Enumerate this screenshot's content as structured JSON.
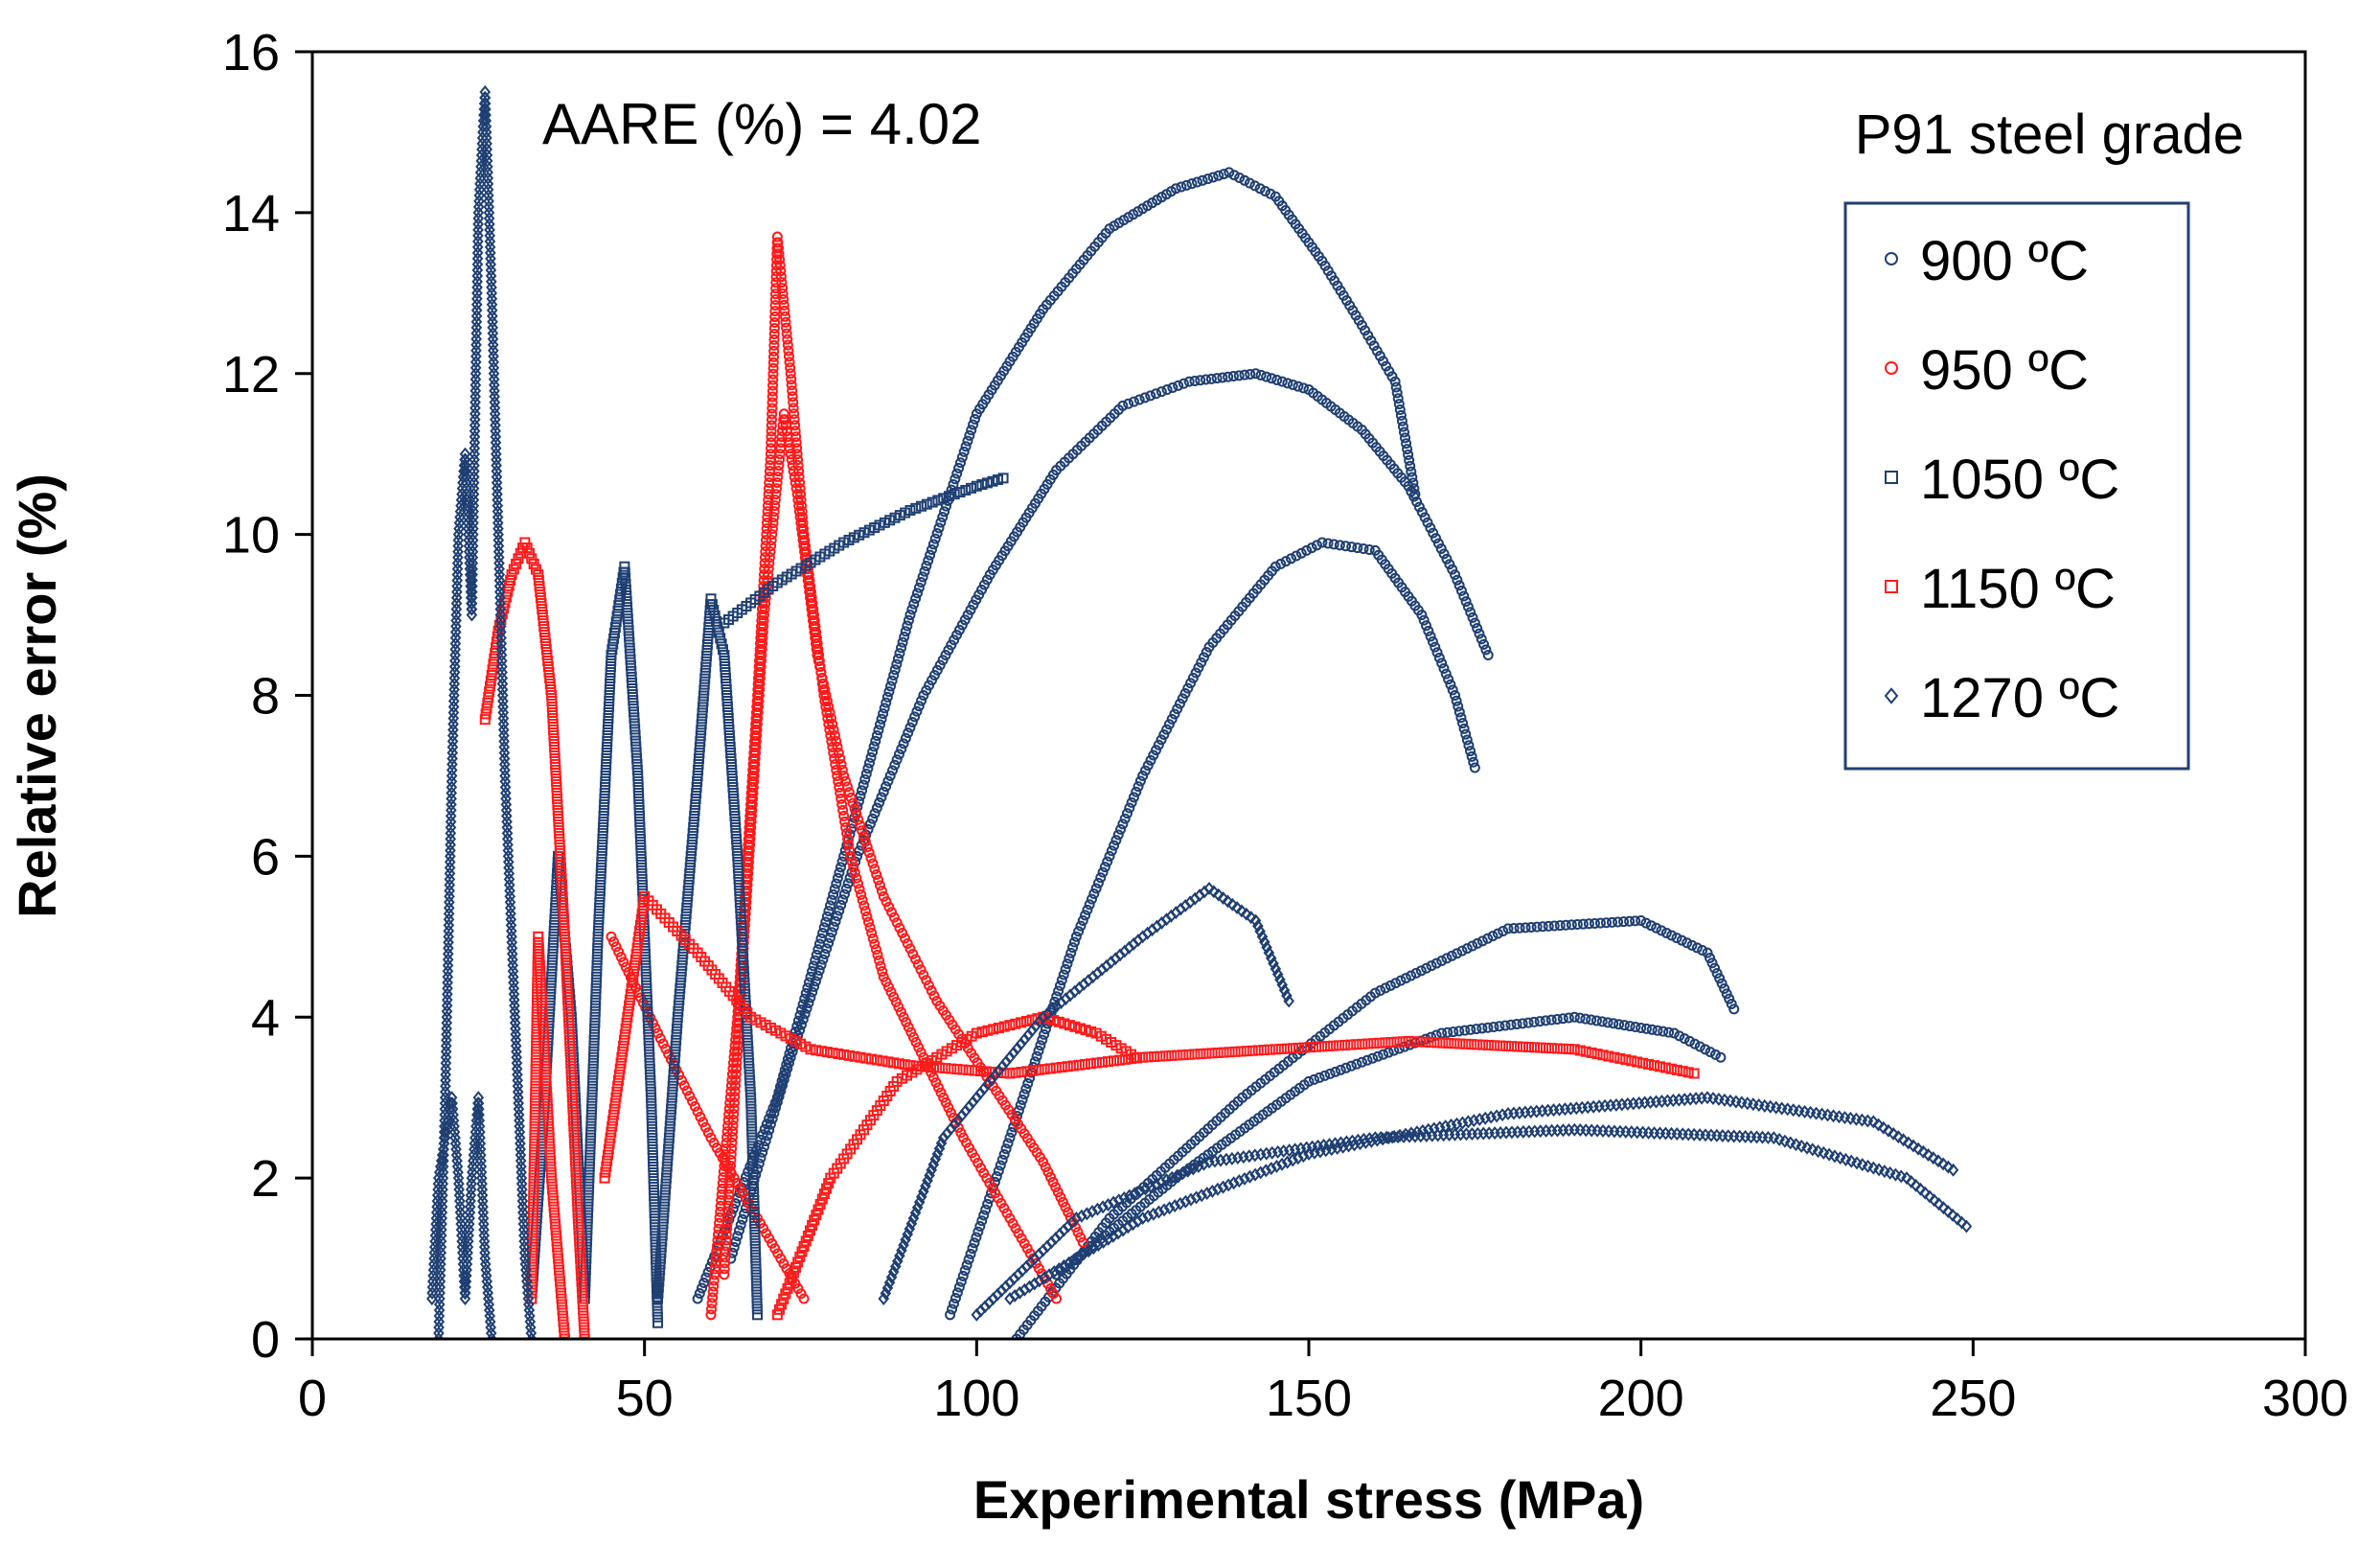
{
  "chart_data": {
    "type": "scatter",
    "xlabel": "Experimental  stress  (MPa)",
    "ylabel": "Relative error  (%)",
    "xlim": [
      0,
      300
    ],
    "ylim": [
      0,
      16
    ],
    "xticks": [
      0,
      50,
      100,
      150,
      200,
      250,
      300
    ],
    "yticks": [
      0,
      2,
      4,
      6,
      8,
      10,
      12,
      14,
      16
    ],
    "grid": false,
    "legend_position": "top-right",
    "annotations": {
      "aare": "AARE (%) = 4.02",
      "material": "P91  steel  grade"
    },
    "series": [
      {
        "name": "900 ºC",
        "marker": "circle",
        "color": "#1f3f73",
        "curves": [
          [
            [
              58,
              0.5
            ],
            [
              70,
              3
            ],
            [
              80,
              6
            ],
            [
              90,
              9
            ],
            [
              100,
              11.5
            ],
            [
              110,
              12.8
            ],
            [
              120,
              13.8
            ],
            [
              130,
              14.3
            ],
            [
              138,
              14.5
            ],
            [
              145,
              14.2
            ],
            [
              152,
              13.4
            ],
            [
              158,
              12.6
            ],
            [
              163,
              11.9
            ],
            [
              166,
              10.5
            ]
          ],
          [
            [
              63,
              1
            ],
            [
              72,
              3.5
            ],
            [
              82,
              6
            ],
            [
              92,
              8
            ],
            [
              102,
              9.5
            ],
            [
              112,
              10.8
            ],
            [
              122,
              11.6
            ],
            [
              132,
              11.9
            ],
            [
              142,
              12.0
            ],
            [
              150,
              11.8
            ],
            [
              158,
              11.3
            ],
            [
              165,
              10.6
            ],
            [
              172,
              9.5
            ],
            [
              177,
              8.5
            ]
          ],
          [
            [
              96,
              0.3
            ],
            [
              105,
              2.5
            ],
            [
              115,
              5
            ],
            [
              125,
              7
            ],
            [
              135,
              8.6
            ],
            [
              145,
              9.6
            ],
            [
              152,
              9.9
            ],
            [
              160,
              9.8
            ],
            [
              167,
              9.0
            ],
            [
              172,
              8.0
            ],
            [
              175,
              7.1
            ]
          ],
          [
            [
              106,
              0
            ],
            [
              120,
              1.5
            ],
            [
              140,
              3
            ],
            [
              160,
              4.3
            ],
            [
              180,
              5.1
            ],
            [
              200,
              5.2
            ],
            [
              210,
              4.8
            ],
            [
              214,
              4.1
            ]
          ],
          [
            [
              112,
              0.8
            ],
            [
              130,
              2
            ],
            [
              150,
              3.2
            ],
            [
              170,
              3.8
            ],
            [
              190,
              4.0
            ],
            [
              205,
              3.8
            ],
            [
              212,
              3.5
            ]
          ]
        ]
      },
      {
        "name": "950 ºC",
        "marker": "circle",
        "color": "#ff1a1a",
        "curves": [
          [
            [
              60,
              0.3
            ],
            [
              64,
              4
            ],
            [
              67,
              8
            ],
            [
              69,
              11
            ],
            [
              70,
              13.7
            ],
            [
              72,
              12
            ],
            [
              74,
              10
            ],
            [
              77,
              8
            ],
            [
              81,
              6
            ],
            [
              86,
              4.5
            ],
            [
              92,
              3.5
            ],
            [
              98,
              2.5
            ],
            [
              105,
              1.5
            ],
            [
              112,
              0.5
            ]
          ],
          [
            [
              62,
              0.8
            ],
            [
              65,
              5
            ],
            [
              68,
              9
            ],
            [
              71,
              11.5
            ],
            [
              73,
              10.5
            ],
            [
              76,
              8.5
            ],
            [
              80,
              7
            ],
            [
              86,
              5.5
            ],
            [
              94,
              4.2
            ],
            [
              102,
              3.2
            ],
            [
              110,
              2.2
            ],
            [
              116,
              1.2
            ]
          ],
          [
            [
              45,
              5
            ],
            [
              52,
              3.8
            ],
            [
              60,
              2.5
            ],
            [
              67,
              1.5
            ],
            [
              74,
              0.5
            ]
          ]
        ]
      },
      {
        "name": "1050 ºC",
        "marker": "square",
        "color": "#1f3f73",
        "curves": [
          [
            [
              33,
              0.5
            ],
            [
              35,
              3
            ],
            [
              37,
              6
            ],
            [
              39,
              4
            ],
            [
              41,
              0.5
            ],
            [
              43,
              5
            ],
            [
              45,
              8.5
            ],
            [
              47,
              9.6
            ],
            [
              49,
              7
            ],
            [
              51,
              3
            ],
            [
              52,
              0.2
            ]
          ],
          [
            [
              52,
              0.5
            ],
            [
              55,
              4
            ],
            [
              58,
              7
            ],
            [
              60,
              9.2
            ],
            [
              62,
              8.5
            ],
            [
              64,
              6
            ],
            [
              66,
              3
            ],
            [
              67,
              0.3
            ]
          ],
          [
            [
              62,
              8.9
            ],
            [
              70,
              9.4
            ],
            [
              80,
              9.9
            ],
            [
              90,
              10.3
            ],
            [
              100,
              10.6
            ],
            [
              104,
              10.7
            ]
          ]
        ]
      },
      {
        "name": "1150 ºC",
        "marker": "square",
        "color": "#ff1a1a",
        "curves": [
          [
            [
              26,
              7.7
            ],
            [
              28,
              8.8
            ],
            [
              30,
              9.5
            ],
            [
              32,
              9.9
            ],
            [
              34,
              9.5
            ],
            [
              36,
              8
            ],
            [
              38,
              5
            ],
            [
              40,
              1.5
            ],
            [
              41,
              0
            ]
          ],
          [
            [
              33,
              0.5
            ],
            [
              34,
              5
            ],
            [
              36,
              2
            ],
            [
              38,
              0
            ]
          ],
          [
            [
              44,
              2
            ],
            [
              50,
              5.5
            ],
            [
              58,
              4.8
            ],
            [
              66,
              4
            ],
            [
              75,
              3.6
            ],
            [
              90,
              3.4
            ],
            [
              105,
              3.3
            ],
            [
              125,
              3.5
            ],
            [
              145,
              3.6
            ],
            [
              165,
              3.7
            ],
            [
              190,
              3.6
            ],
            [
              208,
              3.3
            ]
          ],
          [
            [
              70,
              0.3
            ],
            [
              78,
              2
            ],
            [
              88,
              3.2
            ],
            [
              100,
              3.8
            ],
            [
              110,
              4.0
            ],
            [
              118,
              3.8
            ],
            [
              124,
              3.5
            ]
          ]
        ]
      },
      {
        "name": "1270 ºC",
        "marker": "diamond",
        "color": "#1f3f73",
        "curves": [
          [
            [
              19,
              0
            ],
            [
              20,
              3
            ],
            [
              21,
              7
            ],
            [
              22,
              10
            ],
            [
              23,
              11
            ],
            [
              24,
              9
            ],
            [
              25,
              14
            ],
            [
              26,
              15.5
            ],
            [
              27,
              13
            ],
            [
              28,
              10
            ],
            [
              29,
              7
            ],
            [
              30,
              5
            ],
            [
              31,
              3
            ],
            [
              32,
              1
            ],
            [
              33,
              0
            ]
          ],
          [
            [
              18,
              0.5
            ],
            [
              19,
              2
            ],
            [
              21,
              3
            ],
            [
              22,
              2
            ],
            [
              23,
              0.5
            ],
            [
              24,
              2
            ],
            [
              25,
              3
            ],
            [
              26,
              1
            ],
            [
              27,
              0
            ]
          ],
          [
            [
              86,
              0.5
            ],
            [
              95,
              2.5
            ],
            [
              110,
              4
            ],
            [
              125,
              5
            ],
            [
              135,
              5.6
            ],
            [
              142,
              5.2
            ],
            [
              147,
              4.2
            ]
          ],
          [
            [
              100,
              0.3
            ],
            [
              115,
              1.5
            ],
            [
              135,
              2.2
            ],
            [
              160,
              2.5
            ],
            [
              190,
              2.6
            ],
            [
              220,
              2.5
            ],
            [
              240,
              2.0
            ],
            [
              249,
              1.4
            ]
          ],
          [
            [
              105,
              0.5
            ],
            [
              125,
              1.5
            ],
            [
              150,
              2.3
            ],
            [
              180,
              2.8
            ],
            [
              210,
              3.0
            ],
            [
              235,
              2.7
            ],
            [
              247,
              2.1
            ]
          ]
        ]
      }
    ]
  }
}
